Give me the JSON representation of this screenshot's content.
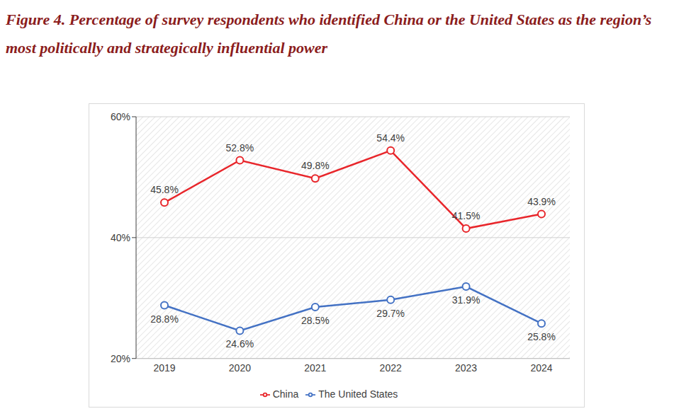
{
  "chart_data": {
    "type": "line",
    "title": "Figure 4. Percentage of survey respondents who identified China or the United States as the region’s most politically and strategically influential power",
    "categories": [
      "2019",
      "2020",
      "2021",
      "2022",
      "2023",
      "2024"
    ],
    "series": [
      {
        "name": "China",
        "color": "#e8262b",
        "marker": "circle",
        "values": [
          45.8,
          52.8,
          49.8,
          54.4,
          41.5,
          43.9
        ],
        "value_labels": [
          "45.8%",
          "52.8%",
          "49.8%",
          "54.4%",
          "41.5%",
          "43.9%"
        ]
      },
      {
        "name": "The United States",
        "color": "#4472c4",
        "marker": "circle",
        "values": [
          28.8,
          24.6,
          28.5,
          29.7,
          31.9,
          25.8
        ],
        "value_labels": [
          "28.8%",
          "24.6%",
          "28.5%",
          "29.7%",
          "31.9%",
          "25.8%"
        ]
      }
    ],
    "ylim": [
      20,
      60
    ],
    "yticks": [
      {
        "value": 20,
        "label": "20%"
      },
      {
        "value": 40,
        "label": "40%"
      },
      {
        "value": 60,
        "label": "60%"
      }
    ],
    "grid": true,
    "legend": "bottom",
    "data_labels": true
  }
}
